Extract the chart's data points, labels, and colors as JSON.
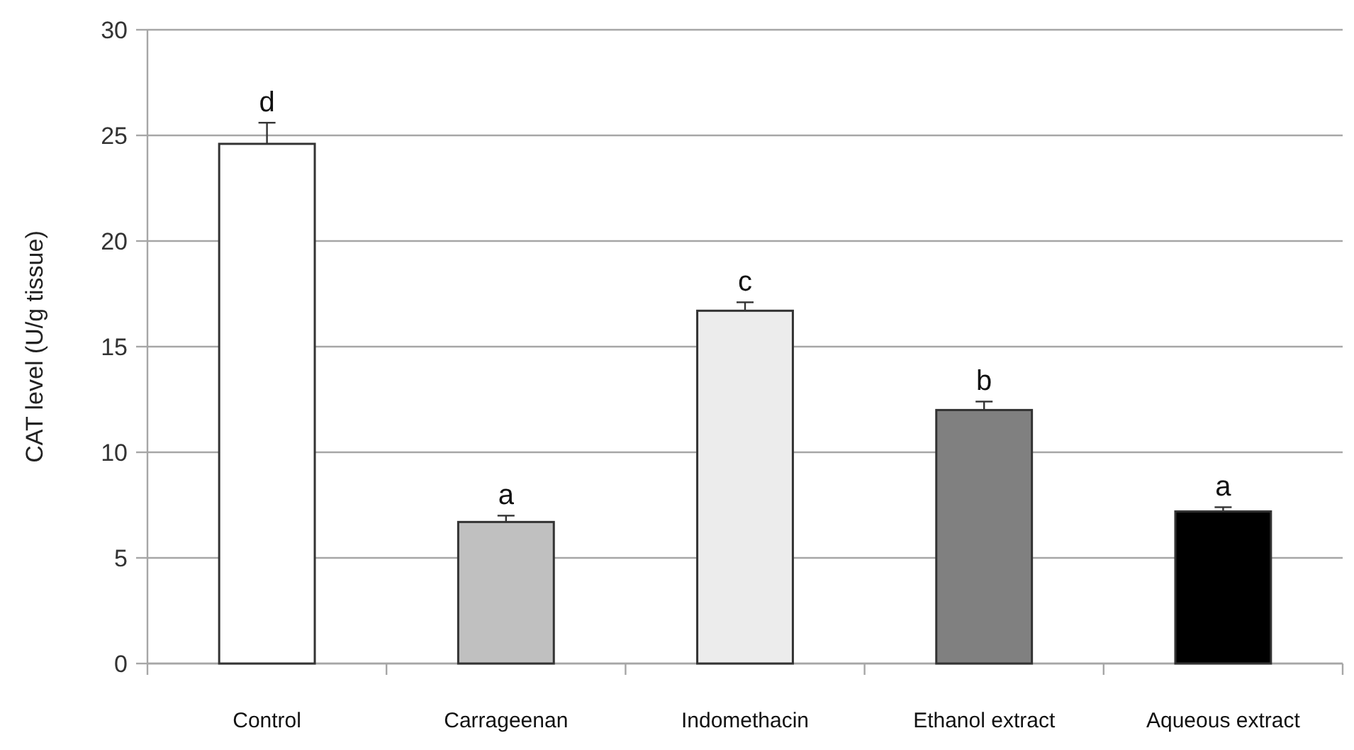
{
  "chart_data": {
    "type": "bar",
    "ylabel": "CAT level (U/g tissue)",
    "categories": [
      "Control",
      "Carrageenan",
      "Indomethacin",
      "Ethanol extract",
      "Aqueous extract"
    ],
    "values": [
      24.6,
      6.7,
      16.7,
      12.0,
      7.2
    ],
    "colors": [
      "#ffffff",
      "#c0c0c0",
      "#ececec",
      "#808080",
      "#000000"
    ],
    "errors": [
      [
        24.6,
        25.6
      ],
      [
        6.7,
        7.0
      ],
      [
        16.7,
        17.1
      ],
      [
        12.0,
        12.4
      ],
      [
        7.2,
        7.4
      ]
    ],
    "annotations": [
      {
        "text": "d",
        "x": "Control",
        "y": 25.6
      },
      {
        "text": "a",
        "x": "Carrageenan",
        "y": 7.0
      },
      {
        "text": "c",
        "x": "Indomethacin",
        "y": 17.1
      },
      {
        "text": "b",
        "x": "Ethanol extract",
        "y": 12.4
      },
      {
        "text": "a",
        "x": "Aqueous extract",
        "y": 7.4
      }
    ],
    "ylim": [
      0,
      30
    ],
    "yticks": [
      0,
      5,
      10,
      15,
      20,
      25,
      30
    ],
    "grid": "y"
  }
}
